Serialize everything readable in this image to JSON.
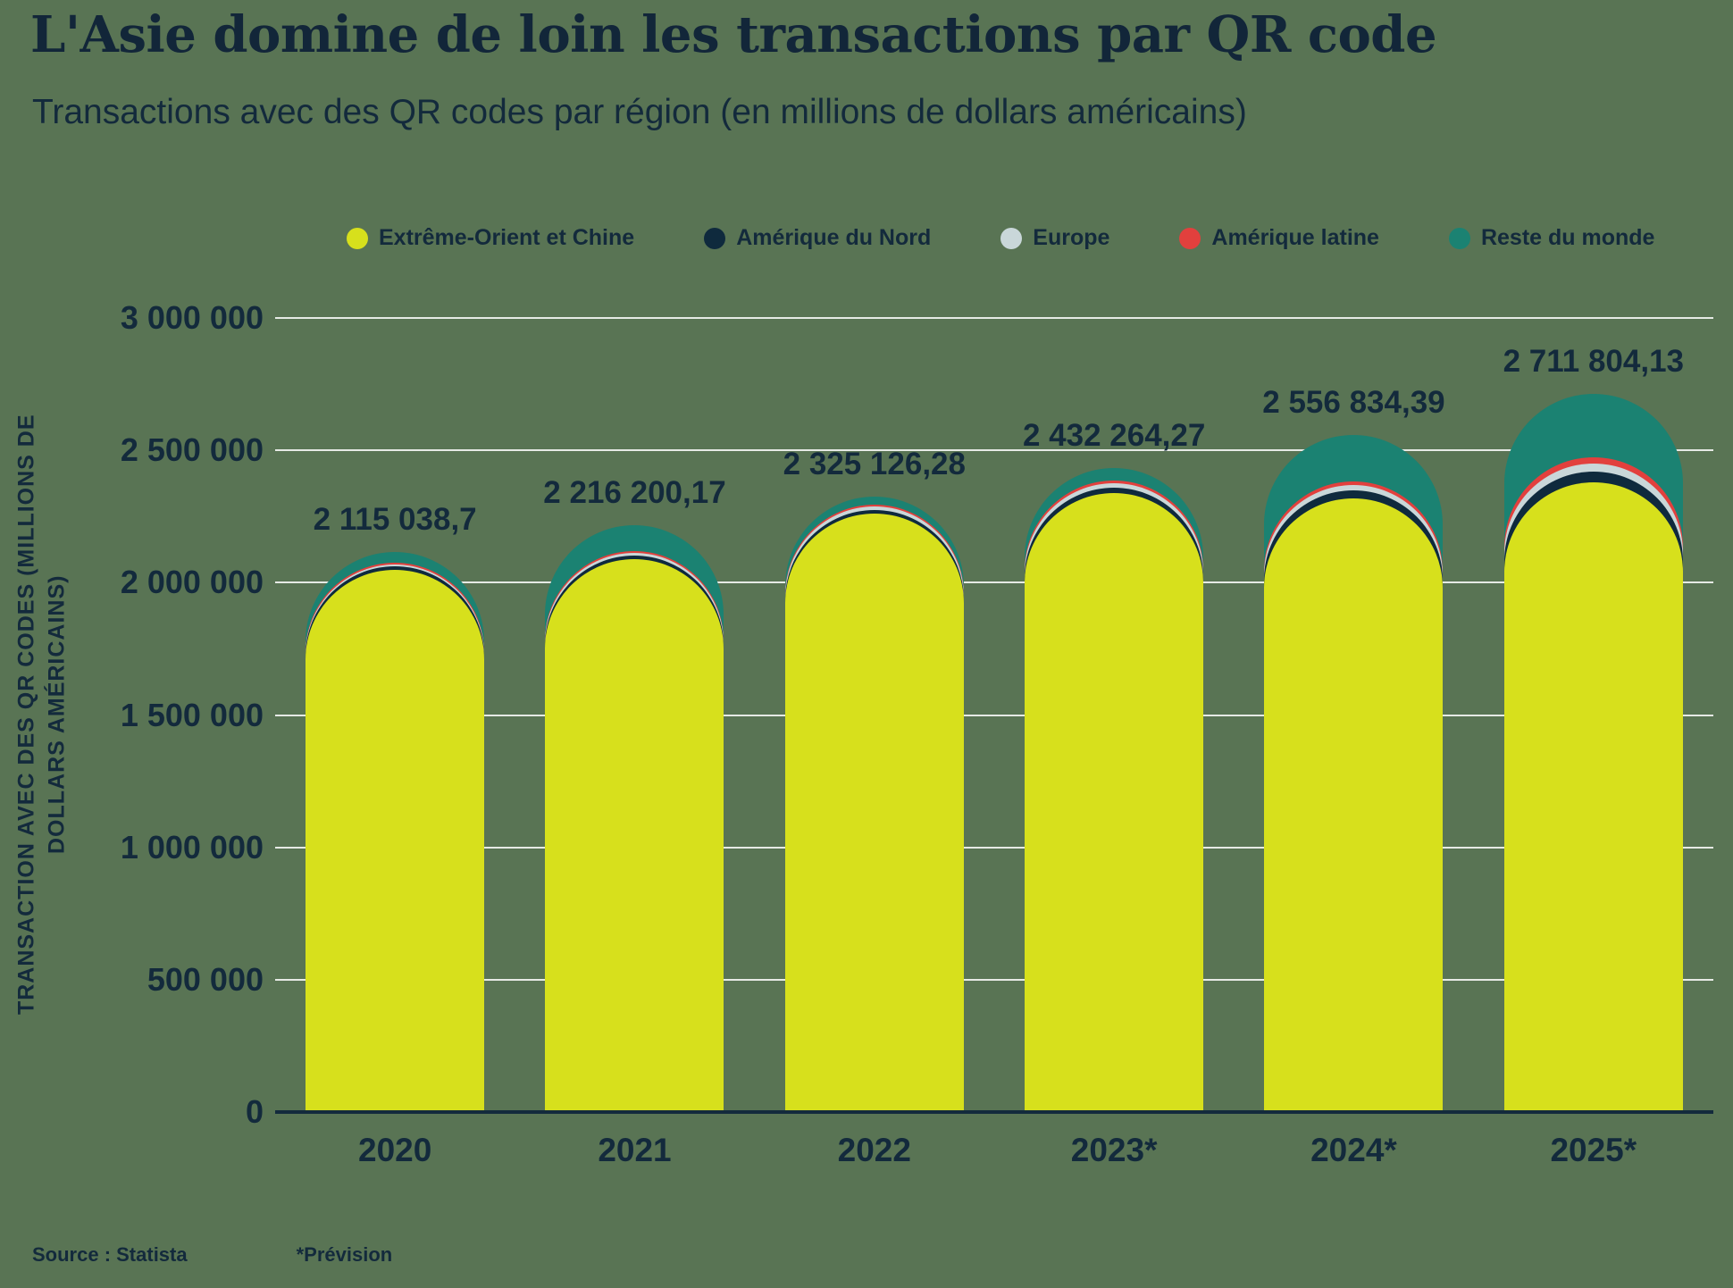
{
  "header": {
    "title": "L'Asie domine de loin les transactions par QR code",
    "subtitle": "Transactions avec des QR codes par région (en millions de dollars américains)"
  },
  "y_axis": {
    "label_line1": "TRANSACTION AVEC DES QR CODES (MILLIONS DE",
    "label_line2": "DOLLARS AMÉRICAINS)"
  },
  "footer": {
    "source": "Source : Statista",
    "forecast_note": "*Prévision"
  },
  "colors": {
    "background": "#597454",
    "text": "#132a3c",
    "gridline": "#ffffff",
    "axis_line": "#132a3c"
  },
  "chart_data": {
    "type": "bar",
    "stacked": true,
    "title": "L'Asie domine de loin les transactions par QR code",
    "subtitle": "Transactions avec des QR codes par région (en millions de dollars américains)",
    "xlabel": "",
    "ylabel": "TRANSACTION AVEC DES QR CODES (MILLIONS DE DOLLARS AMÉRICAINS)",
    "ylim": [
      0,
      3000000
    ],
    "grid": true,
    "legend_position": "top",
    "categories": [
      "2020",
      "2021",
      "2022",
      "2023*",
      "2024*",
      "2025*"
    ],
    "series": [
      {
        "name": "Extrême-Orient et Chine",
        "color": "#d7e01c",
        "values": [
          2050000,
          2090000,
          2260000,
          2340000,
          2320000,
          2380000
        ]
      },
      {
        "name": "Amérique du Nord",
        "color": "#0f2a3d",
        "values": [
          12000,
          14000,
          16000,
          20000,
          28000,
          40000
        ]
      },
      {
        "name": "Europe",
        "color": "#c9d7d9",
        "values": [
          8000,
          10000,
          12000,
          16000,
          22000,
          30000
        ]
      },
      {
        "name": "Amérique latine",
        "color": "#e2403d",
        "values": [
          4000,
          5000,
          6000,
          9000,
          12000,
          25000
        ]
      },
      {
        "name": "Reste du monde",
        "color": "#1b8272",
        "values": [
          41038.7,
          97200.17,
          31126.28,
          47264.27,
          174834.39,
          236804.13
        ]
      }
    ],
    "totals": [
      2115038.7,
      2216200.17,
      2325126.28,
      2432264.27,
      2556834.39,
      2711804.13
    ],
    "total_labels": [
      "2 115 038,7",
      "2 216 200,17",
      "2 325 126,28",
      "2 432 264,27",
      "2 556 834,39",
      "2 711 804,13"
    ],
    "yticks": [
      {
        "value": 0,
        "label": "0"
      },
      {
        "value": 500000,
        "label": "500 000"
      },
      {
        "value": 1000000,
        "label": "1 000 000"
      },
      {
        "value": 1500000,
        "label": "1 500 000"
      },
      {
        "value": 2000000,
        "label": "2 000 000"
      },
      {
        "value": 2500000,
        "label": "2 500 000"
      },
      {
        "value": 3000000,
        "label": "3 000 000"
      }
    ]
  }
}
